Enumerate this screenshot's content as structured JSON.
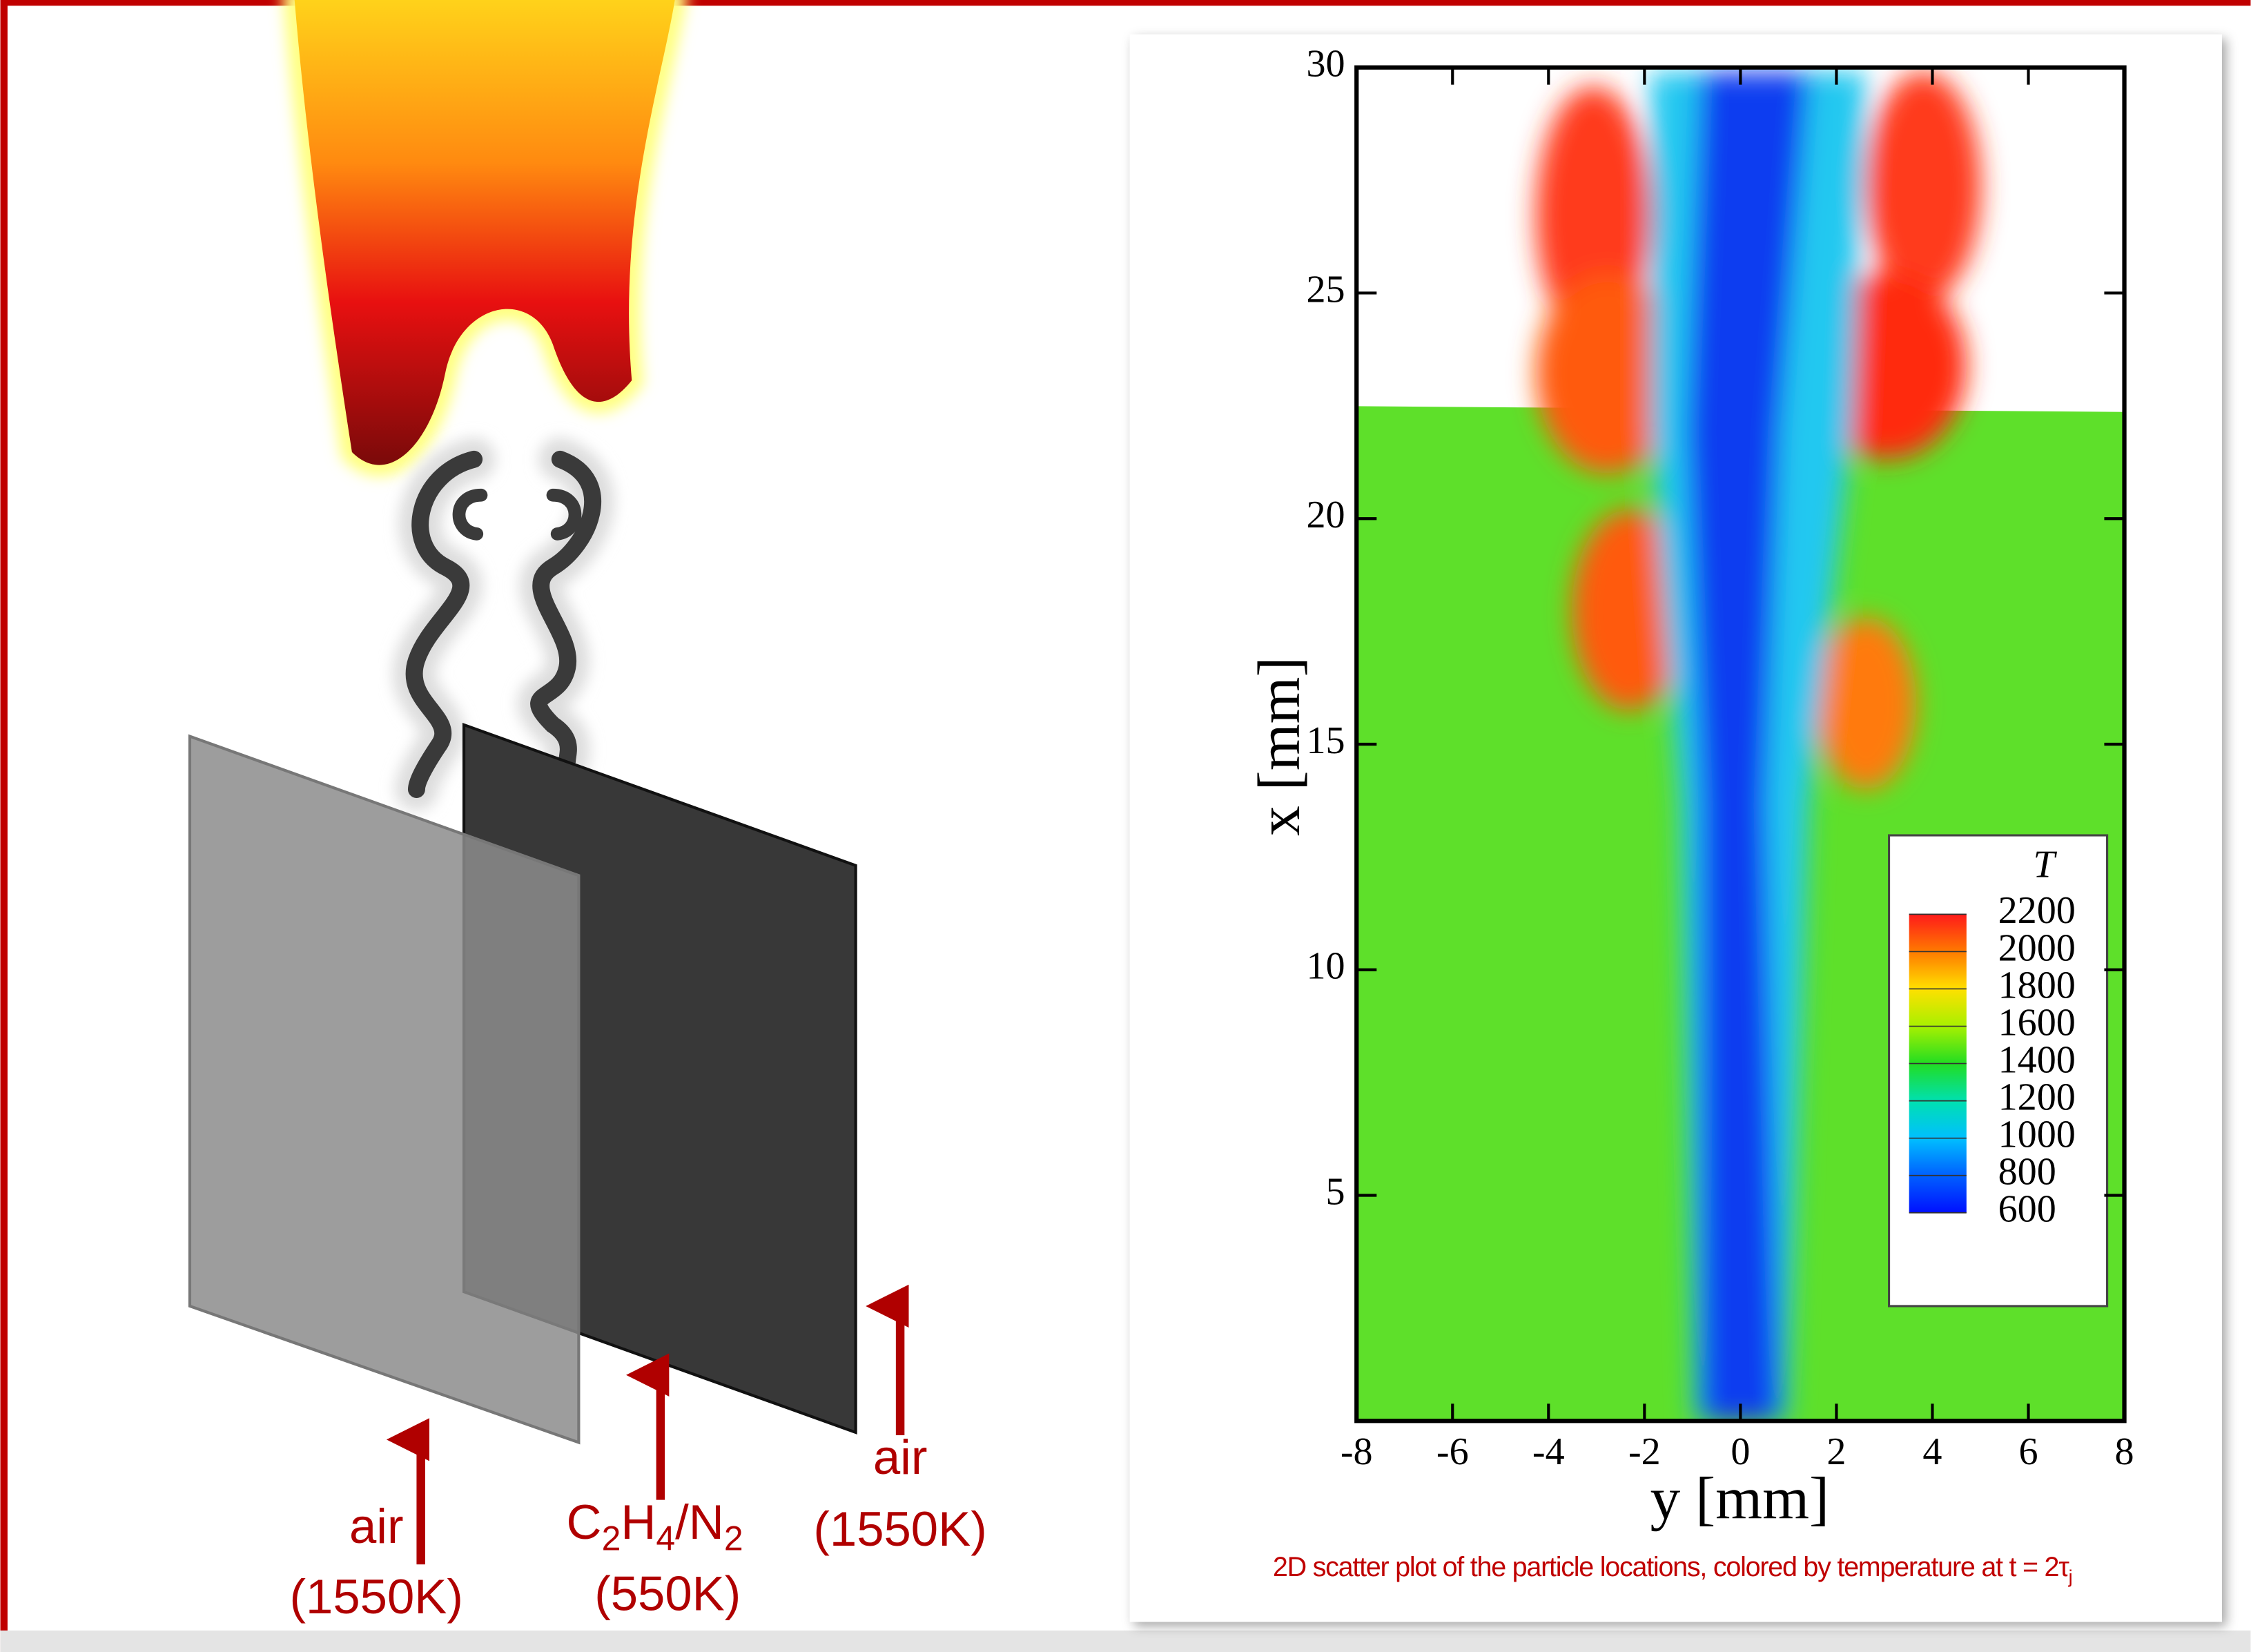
{
  "diagram": {
    "labels": {
      "left_air": {
        "name": "air",
        "temp": "(1550K)"
      },
      "fuel": {
        "name_parts": [
          "C",
          "2",
          "H",
          "4",
          "/N",
          "2"
        ],
        "temp": "(550K)"
      },
      "right_air": {
        "name": "air",
        "temp": "(1550K)"
      }
    }
  },
  "chart_data": {
    "type": "scatter",
    "xlabel": "y [mm]",
    "ylabel": "x [mm]",
    "xlim": [
      -8,
      8
    ],
    "ylim": [
      0,
      30
    ],
    "xticks": [
      -8,
      -6,
      -4,
      -2,
      0,
      2,
      4,
      6,
      8
    ],
    "yticks": [
      5,
      10,
      15,
      20,
      25,
      30
    ],
    "colorbar": {
      "title": "T",
      "ticks": [
        2200,
        2000,
        1800,
        1600,
        1400,
        1200,
        1000,
        800,
        600
      ],
      "colors": [
        "#ff1a1a",
        "#ff7a00",
        "#ffe000",
        "#a8f000",
        "#22dd22",
        "#00e0b0",
        "#00c0ff",
        "#0060ff",
        "#0010ff"
      ]
    },
    "caption_parts": [
      "2D scatter plot of the particle locations, colored by temperature at t = 2τ",
      "j"
    ]
  }
}
